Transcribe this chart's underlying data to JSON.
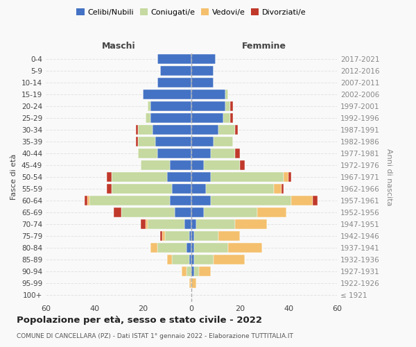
{
  "age_groups": [
    "100+",
    "95-99",
    "90-94",
    "85-89",
    "80-84",
    "75-79",
    "70-74",
    "65-69",
    "60-64",
    "55-59",
    "50-54",
    "45-49",
    "40-44",
    "35-39",
    "30-34",
    "25-29",
    "20-24",
    "15-19",
    "10-14",
    "5-9",
    "0-4"
  ],
  "birth_years": [
    "≤ 1921",
    "1922-1926",
    "1927-1931",
    "1932-1936",
    "1937-1941",
    "1942-1946",
    "1947-1951",
    "1952-1956",
    "1957-1961",
    "1962-1966",
    "1967-1971",
    "1972-1976",
    "1977-1981",
    "1982-1986",
    "1987-1991",
    "1992-1996",
    "1997-2001",
    "2002-2006",
    "2007-2011",
    "2012-2016",
    "2017-2021"
  ],
  "male_celibe": [
    0,
    0,
    0,
    1,
    2,
    1,
    3,
    7,
    9,
    8,
    10,
    9,
    14,
    15,
    16,
    17,
    17,
    20,
    14,
    13,
    14
  ],
  "male_coniugato": [
    0,
    0,
    2,
    7,
    12,
    10,
    15,
    22,
    33,
    25,
    23,
    12,
    8,
    7,
    6,
    2,
    1,
    0,
    0,
    0,
    0
  ],
  "male_vedovo": [
    0,
    1,
    2,
    2,
    3,
    1,
    1,
    0,
    1,
    0,
    0,
    0,
    0,
    0,
    0,
    0,
    0,
    0,
    0,
    0,
    0
  ],
  "male_divorziato": [
    0,
    0,
    0,
    0,
    0,
    1,
    2,
    3,
    1,
    2,
    2,
    0,
    0,
    1,
    1,
    0,
    0,
    0,
    0,
    0,
    0
  ],
  "female_nubile": [
    0,
    0,
    1,
    1,
    1,
    1,
    2,
    5,
    8,
    6,
    8,
    5,
    8,
    9,
    11,
    13,
    14,
    14,
    9,
    9,
    10
  ],
  "female_coniugata": [
    0,
    0,
    2,
    8,
    14,
    10,
    16,
    22,
    33,
    28,
    30,
    15,
    10,
    8,
    7,
    3,
    2,
    1,
    0,
    0,
    0
  ],
  "female_vedova": [
    0,
    2,
    5,
    13,
    14,
    9,
    13,
    12,
    9,
    3,
    2,
    0,
    0,
    0,
    0,
    0,
    0,
    0,
    0,
    0,
    0
  ],
  "female_divorziata": [
    0,
    0,
    0,
    0,
    0,
    0,
    0,
    0,
    2,
    1,
    1,
    2,
    2,
    0,
    1,
    1,
    1,
    0,
    0,
    0,
    0
  ],
  "colors": {
    "celibe": "#4472c4",
    "coniugato": "#c5d9a0",
    "vedovo": "#f4c06e",
    "divorziato": "#c0392b"
  },
  "xlim": [
    -60,
    60
  ],
  "xticks": [
    -60,
    -40,
    -20,
    0,
    20,
    40,
    60
  ],
  "xticklabels": [
    "60",
    "40",
    "20",
    "0",
    "20",
    "40",
    "60"
  ],
  "title": "Popolazione per età, sesso e stato civile - 2022",
  "subtitle": "COMUNE DI CANCELLARA (PZ) - Dati ISTAT 1° gennaio 2022 - Elaborazione TUTTITALIA.IT",
  "ylabel_left": "Fasce di età",
  "ylabel_right": "Anni di nascita",
  "legend_labels": [
    "Celibi/Nubili",
    "Coniugati/e",
    "Vedovi/e",
    "Divorziati/e"
  ],
  "maschi_label": "Maschi",
  "femmine_label": "Femmine",
  "background_color": "#f9f9f9"
}
